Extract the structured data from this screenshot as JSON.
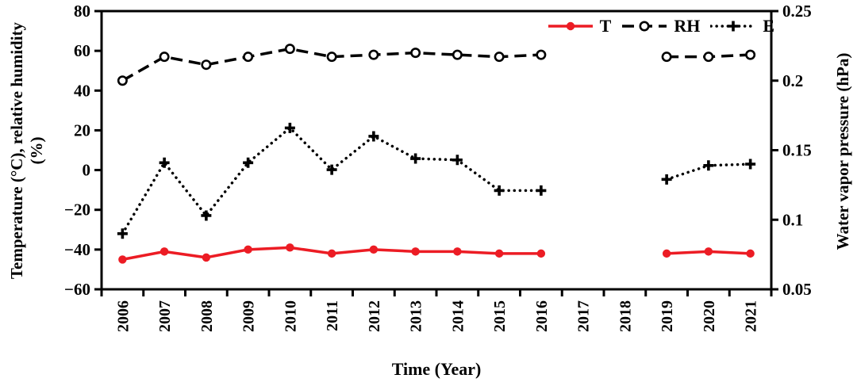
{
  "chart_data": {
    "type": "line",
    "title": "",
    "xlabel": "Time (Year)",
    "ylabel_left_line1": "Temperature (°C), relative humidity",
    "ylabel_left_line2": "(%)",
    "ylabel_right": "Water vapor pressure (hPa)",
    "x_categories": [
      "2006",
      "2007",
      "2008",
      "2009",
      "2010",
      "2011",
      "2012",
      "2013",
      "2014",
      "2015",
      "2016",
      "2017",
      "2018",
      "2019",
      "2020",
      "2021"
    ],
    "left_axis": {
      "min": -60,
      "max": 80,
      "ticks": [
        80,
        60,
        40,
        20,
        0,
        -20,
        -40,
        -60
      ],
      "tick_labels": [
        "80",
        "60",
        "40",
        "20",
        "0",
        "−20",
        "−40",
        "−60"
      ]
    },
    "right_axis": {
      "min": 0.05,
      "max": 0.25,
      "ticks": [
        0.25,
        0.2,
        0.15,
        0.1,
        0.05
      ],
      "tick_labels": [
        "0.25",
        "0.2",
        "0.15",
        "0.1",
        "0.05"
      ]
    },
    "grid": "off",
    "legend_position": "top-right-inside",
    "colors": {
      "t_red": "#EC1C24",
      "black": "#000000"
    },
    "series": [
      {
        "name": "T",
        "axis": "left",
        "unit": "°C",
        "color": "#EC1C24",
        "style": "solid",
        "marker": "filled-circle",
        "values": [
          -45,
          -41,
          -44,
          -40,
          -39,
          -42,
          -40,
          -41,
          -41,
          -42,
          -42,
          null,
          null,
          -42,
          -41,
          -42
        ]
      },
      {
        "name": "RH",
        "axis": "left",
        "unit": "%",
        "color": "#000000",
        "style": "dashed",
        "marker": "open-circle",
        "values": [
          45,
          57,
          53,
          57,
          61,
          57,
          58,
          59,
          58,
          57,
          58,
          null,
          null,
          57,
          57,
          58
        ]
      },
      {
        "name": "E",
        "axis": "right",
        "unit": "hPa",
        "color": "#000000",
        "style": "dotted",
        "marker": "plus",
        "values": [
          0.09,
          0.141,
          0.103,
          0.141,
          0.166,
          0.136,
          0.16,
          0.144,
          0.143,
          0.121,
          0.121,
          null,
          null,
          0.129,
          0.139,
          0.14
        ]
      }
    ]
  }
}
